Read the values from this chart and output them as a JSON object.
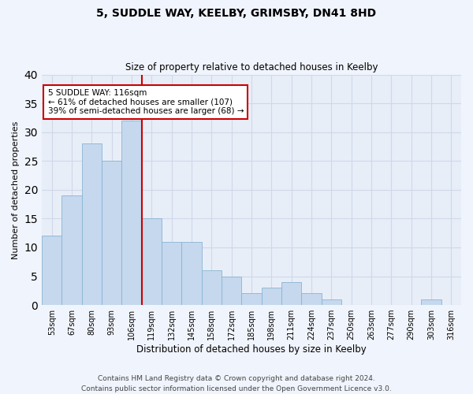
{
  "title1": "5, SUDDLE WAY, KEELBY, GRIMSBY, DN41 8HD",
  "title2": "Size of property relative to detached houses in Keelby",
  "xlabel": "Distribution of detached houses by size in Keelby",
  "ylabel": "Number of detached properties",
  "bin_labels": [
    "53sqm",
    "67sqm",
    "80sqm",
    "93sqm",
    "106sqm",
    "119sqm",
    "132sqm",
    "145sqm",
    "158sqm",
    "172sqm",
    "185sqm",
    "198sqm",
    "211sqm",
    "224sqm",
    "237sqm",
    "250sqm",
    "263sqm",
    "277sqm",
    "290sqm",
    "303sqm",
    "316sqm"
  ],
  "bar_values": [
    12,
    19,
    28,
    25,
    32,
    15,
    11,
    11,
    6,
    5,
    2,
    3,
    4,
    2,
    1,
    0,
    0,
    0,
    0,
    1,
    0
  ],
  "bar_color": "#c5d8ed",
  "bar_edge_color": "#8ab4d4",
  "vline_x": 5,
  "vline_color": "#cc0000",
  "annotation_text": "5 SUDDLE WAY: 116sqm\n← 61% of detached houses are smaller (107)\n39% of semi-detached houses are larger (68) →",
  "annotation_box_color": "#ffffff",
  "annotation_box_edge": "#cc0000",
  "ylim": [
    0,
    40
  ],
  "yticks": [
    0,
    5,
    10,
    15,
    20,
    25,
    30,
    35,
    40
  ],
  "grid_color": "#d0d8e8",
  "background_color": "#e8eef8",
  "fig_facecolor": "#f0f4fc",
  "footer": "Contains HM Land Registry data © Crown copyright and database right 2024.\nContains public sector information licensed under the Open Government Licence v3.0."
}
